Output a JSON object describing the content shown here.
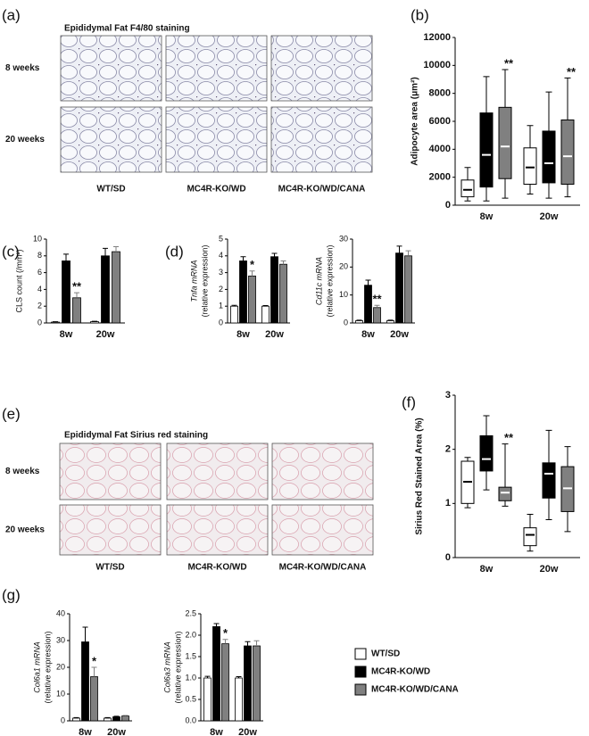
{
  "legend": [
    {
      "name": "WT/SD",
      "color": "#ffffff"
    },
    {
      "name": "MC4R-KO/WD",
      "color": "#000000"
    },
    {
      "name": "MC4R-KO/WD/CANA",
      "color": "#808080"
    }
  ],
  "image_panels": [
    {
      "panel": "(a)",
      "title": "Epididymal Fat F4/80 staining",
      "rows": [
        "8 weeks",
        "20 weeks"
      ],
      "columns": [
        "WT/SD",
        "MC4R-KO/WD",
        "MC4R-KO/WD/CANA"
      ]
    },
    {
      "panel": "(e)",
      "title": "Epididymal Fat Sirius red staining",
      "rows": [
        "8 weeks",
        "20 weeks"
      ],
      "columns": [
        "WT/SD",
        "MC4R-KO/WD",
        "MC4R-KO/WD/CANA"
      ]
    }
  ],
  "chart_data": [
    {
      "type": "box",
      "panel": "(b)",
      "ylabel": "Adipocyte area (μm²)",
      "categories": [
        "8w",
        "20w"
      ],
      "ylim": [
        0,
        12000
      ],
      "yticks": [
        0,
        2000,
        4000,
        6000,
        8000,
        10000,
        12000
      ],
      "series": [
        {
          "values": [
            {
              "min": 300,
              "q1": 600,
              "median": 1100,
              "q3": 1800,
              "max": 2700
            },
            {
              "min": 800,
              "q1": 1500,
              "median": 2700,
              "q3": 4100,
              "max": 5700
            }
          ]
        },
        {
          "values": [
            {
              "min": 300,
              "q1": 1300,
              "median": 3600,
              "q3": 6600,
              "max": 9200
            },
            {
              "min": 500,
              "q1": 1600,
              "median": 3000,
              "q3": 5300,
              "max": 8100
            }
          ]
        },
        {
          "values": [
            {
              "min": 500,
              "q1": 1900,
              "median": 4200,
              "q3": 7000,
              "max": 9700
            },
            {
              "min": 600,
              "q1": 1500,
              "median": 3500,
              "q3": 6100,
              "max": 9100
            }
          ],
          "annotations": [
            "**",
            "**"
          ]
        }
      ]
    },
    {
      "type": "bar",
      "panel": "(c)",
      "ylabel": "CLS count (/mm²)",
      "categories": [
        "8w",
        "20w"
      ],
      "ylim": [
        0,
        10
      ],
      "yticks": [
        0,
        2,
        4,
        6,
        8,
        10
      ],
      "series": [
        {
          "values": [
            0.1,
            0.15
          ],
          "errors": [
            0.05,
            0.05
          ]
        },
        {
          "values": [
            7.4,
            8.0
          ],
          "errors": [
            0.8,
            0.9
          ]
        },
        {
          "values": [
            3.0,
            8.5
          ],
          "errors": [
            0.6,
            0.6
          ],
          "annotations": [
            "**",
            null
          ]
        }
      ]
    },
    {
      "type": "bar",
      "panel": "(d)",
      "ylabel": [
        "Tnfa mRNA",
        "(relative expression)"
      ],
      "categories": [
        "8w",
        "20w"
      ],
      "ylim": [
        0,
        5
      ],
      "yticks": [
        0,
        1,
        2,
        3,
        4,
        5
      ],
      "series": [
        {
          "values": [
            1.0,
            1.0
          ],
          "errors": [
            0.05,
            0.04
          ]
        },
        {
          "values": [
            3.7,
            3.95
          ],
          "errors": [
            0.25,
            0.2
          ]
        },
        {
          "values": [
            2.8,
            3.5
          ],
          "errors": [
            0.3,
            0.2
          ],
          "annotations": [
            "*",
            null
          ]
        }
      ]
    },
    {
      "type": "bar",
      "ylabel": [
        "Cd11c mRNA",
        "(relative expression)"
      ],
      "categories": [
        "8w",
        "20w"
      ],
      "ylim": [
        0,
        30
      ],
      "yticks": [
        0,
        10,
        20,
        30
      ],
      "series": [
        {
          "values": [
            0.8,
            0.8
          ],
          "errors": [
            0.2,
            0.2
          ]
        },
        {
          "values": [
            13.5,
            25
          ],
          "errors": [
            1.8,
            2.5
          ]
        },
        {
          "values": [
            5.5,
            24
          ],
          "errors": [
            0.8,
            1.8
          ],
          "annotations": [
            "**",
            null
          ]
        }
      ]
    },
    {
      "type": "box",
      "panel": "(f)",
      "ylabel": "Sirius Red Stained Area (%)",
      "categories": [
        "8w",
        "20w"
      ],
      "ylim": [
        0,
        3
      ],
      "yticks": [
        0,
        1,
        2,
        3
      ],
      "series": [
        {
          "values": [
            {
              "min": 0.92,
              "q1": 1.0,
              "median": 1.4,
              "q3": 1.78,
              "max": 1.85
            },
            {
              "min": 0.12,
              "q1": 0.22,
              "median": 0.42,
              "q3": 0.55,
              "max": 0.8
            }
          ]
        },
        {
          "values": [
            {
              "min": 1.25,
              "q1": 1.6,
              "median": 1.82,
              "q3": 2.25,
              "max": 2.62
            },
            {
              "min": 0.7,
              "q1": 1.1,
              "median": 1.55,
              "q3": 1.75,
              "max": 2.35
            }
          ]
        },
        {
          "values": [
            {
              "min": 0.95,
              "q1": 1.05,
              "median": 1.2,
              "q3": 1.3,
              "max": 2.1
            },
            {
              "min": 0.48,
              "q1": 0.85,
              "median": 1.28,
              "q3": 1.68,
              "max": 2.05
            }
          ],
          "annotations": [
            "**",
            null
          ]
        }
      ]
    },
    {
      "type": "bar",
      "panel": "(g)",
      "ylabel": [
        "Col6a1 mRNA",
        "(relative expression)"
      ],
      "categories": [
        "8w",
        "20w"
      ],
      "ylim": [
        0,
        40
      ],
      "yticks": [
        0,
        10,
        20,
        30,
        40
      ],
      "series": [
        {
          "values": [
            1,
            1
          ],
          "errors": [
            0.2,
            0.2
          ]
        },
        {
          "values": [
            29.5,
            1.5
          ],
          "errors": [
            5.5,
            0.2
          ]
        },
        {
          "values": [
            16.5,
            1.8
          ],
          "errors": [
            3.5,
            0.2
          ],
          "annotations": [
            "*",
            null
          ]
        }
      ]
    },
    {
      "type": "bar",
      "ylabel": [
        "Col6a3 mRNA",
        "(relative expression)"
      ],
      "categories": [
        "8w",
        "20w"
      ],
      "ylim": [
        0,
        2.5
      ],
      "yticks": [
        {
          "value": 0,
          "label": "0.0"
        },
        0.5,
        {
          "value": 1,
          "label": "1.0"
        },
        1.5,
        {
          "value": 2,
          "label": "2.0"
        },
        2.5
      ],
      "series": [
        {
          "values": [
            1.0,
            1.0
          ],
          "errors": [
            0.04,
            0.03
          ]
        },
        {
          "values": [
            2.2,
            1.75
          ],
          "errors": [
            0.07,
            0.1
          ]
        },
        {
          "values": [
            1.8,
            1.75
          ],
          "errors": [
            0.1,
            0.12
          ],
          "annotations": [
            "*",
            null
          ]
        }
      ]
    }
  ]
}
